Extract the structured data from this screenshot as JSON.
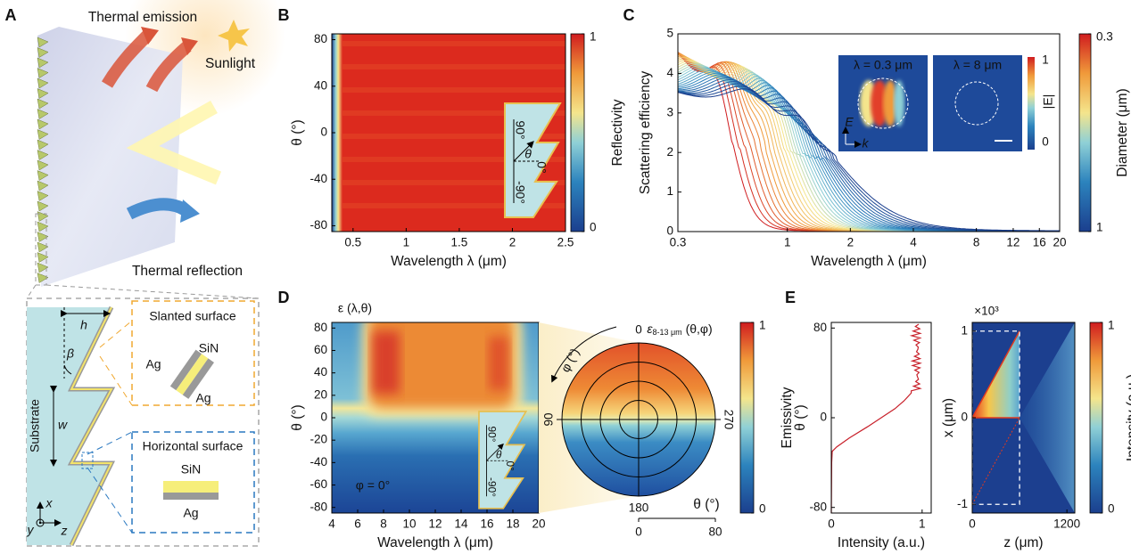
{
  "panel_labels": [
    "A",
    "B",
    "C",
    "D",
    "E"
  ],
  "a": {
    "thermal_emission": "Thermal emission",
    "sunlight": "Sunlight",
    "thermal_reflection": "Thermal reflection",
    "h": "h",
    "beta": "β",
    "w": "w",
    "substrate": "Substrate",
    "x": "x",
    "y": "y",
    "z": "z",
    "slanted": {
      "title": "Slanted surface",
      "sin": "SiN",
      "ag_top": "Ag",
      "ag_bottom": "Ag"
    },
    "horizontal": {
      "title": "Horizontal surface",
      "sin": "SiN",
      "ag": "Ag"
    }
  },
  "b": {
    "x_label": "Wavelength λ (μm)",
    "y_label": "θ (°)",
    "xlim": [
      0.3,
      2.5
    ],
    "xticks": [
      0.5,
      1,
      1.5,
      2,
      2.5
    ],
    "ylim": [
      -85,
      85
    ],
    "yticks": [
      -80,
      -40,
      0,
      40,
      80
    ],
    "colorbar_label": "Reflectivity",
    "colorbar_ticks": [
      0,
      1
    ],
    "inset": {
      "top": "90°",
      "bottom": "-90°",
      "zero": "0°",
      "theta": "θ"
    }
  },
  "c": {
    "x_label": "Wavelength λ (μm)",
    "y_label": "Scattering efficiency",
    "x_scale": "log",
    "xlim": [
      0.3,
      20
    ],
    "xticks": [
      0.3,
      1,
      2,
      4,
      8,
      12,
      16,
      20
    ],
    "ylim": [
      0,
      5
    ],
    "yticks": [
      0,
      1,
      2,
      3,
      4,
      5
    ],
    "colorbar_label": "Diameter (μm)",
    "colorbar_ticks": [
      1,
      0.3
    ],
    "inset": {
      "left_title": "λ = 0.3 μm",
      "right_title": "λ = 8 μm",
      "field_label": "|E|",
      "field_ticks": [
        0,
        1
      ],
      "e": "E",
      "k": "k"
    }
  },
  "d": {
    "title": "ε (λ,θ)",
    "annotation": "φ = 0°",
    "x_label": "Wavelength λ (μm)",
    "y_label": "θ (°)",
    "xlim": [
      4,
      20
    ],
    "xticks": [
      4,
      6,
      8,
      10,
      12,
      14,
      16,
      18,
      20
    ],
    "ylim": [
      -85,
      85
    ],
    "yticks": [
      -80,
      -60,
      -40,
      -20,
      0,
      20,
      40,
      60,
      80
    ],
    "inset": {
      "top": "90°",
      "bottom": "-90°",
      "zero": "0°",
      "theta": "θ"
    },
    "polar": {
      "title": {
        "symbol": "ε",
        "subscript": "8-13 μm",
        "args": " (θ,φ)"
      },
      "angle_ticks": [
        0,
        90,
        180,
        270
      ],
      "phi_label": "φ (°)",
      "theta_label": "θ (°)",
      "rlim": [
        0,
        80
      ],
      "radial_ticks": [
        0,
        80
      ]
    },
    "colorbar_label": "Emissivity",
    "colorbar_ticks": [
      0,
      1
    ]
  },
  "e_left": {
    "x_label": "Intensity (a.u.)",
    "y_label": "θ (°)",
    "xlim": [
      0,
      1.1
    ],
    "xticks": [
      0,
      1
    ],
    "ylim": [
      -85,
      85
    ],
    "yticks": [
      -80,
      0,
      80
    ]
  },
  "e_right": {
    "multiplier": "×10³",
    "x_label": "z (μm)",
    "y_label": "x (μm)",
    "xlim": [
      0,
      1300
    ],
    "xticks": [
      0,
      1200
    ],
    "ylim": [
      -1.1,
      1.1
    ],
    "yticks": [
      -1,
      0,
      1
    ],
    "colorbar_label": "Intensity (a.u.)",
    "colorbar_ticks": [
      0,
      1
    ]
  }
}
